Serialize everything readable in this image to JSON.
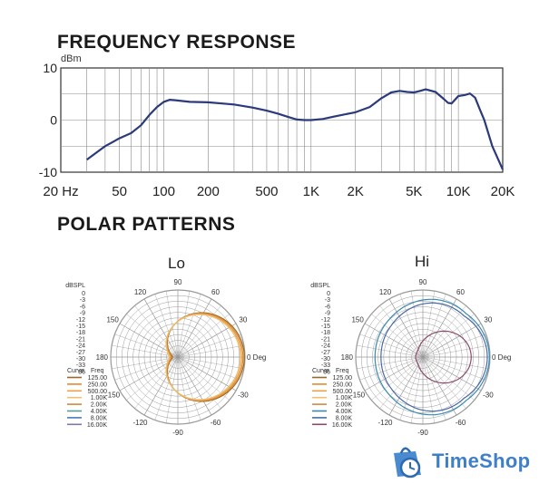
{
  "chart_data": [
    {
      "type": "line",
      "title": "FREQUENCY RESPONSE",
      "ylabel": "dBm",
      "xscale": "log",
      "xlim": [
        20,
        20000
      ],
      "ylim": [
        -10,
        10
      ],
      "grid": true,
      "x_ticks": [
        {
          "value": 20,
          "label": "20 Hz"
        },
        {
          "value": 50,
          "label": "50"
        },
        {
          "value": 100,
          "label": "100"
        },
        {
          "value": 200,
          "label": "200"
        },
        {
          "value": 500,
          "label": "500"
        },
        {
          "value": 1000,
          "label": "1K"
        },
        {
          "value": 2000,
          "label": "2K"
        },
        {
          "value": 5000,
          "label": "5K"
        },
        {
          "value": 10000,
          "label": "10K"
        },
        {
          "value": 20000,
          "label": "20K"
        }
      ],
      "y_ticks": [
        {
          "value": 10,
          "label": "10"
        },
        {
          "value": 0,
          "label": "0"
        },
        {
          "value": -10,
          "label": "-10"
        }
      ],
      "color": "#2b3a7a",
      "series": [
        {
          "x": [
            30,
            40,
            50,
            60,
            70,
            80,
            90,
            100,
            110,
            120,
            150,
            200,
            300,
            400,
            500,
            600,
            700,
            800,
            900,
            1000,
            1200,
            1500,
            2000,
            2500,
            3000,
            3500,
            4000,
            4500,
            5000,
            5500,
            6000,
            7000,
            8000,
            8500,
            9000,
            10000,
            11000,
            12000,
            13000,
            14000,
            15000,
            17000,
            20000
          ],
          "y": [
            -7.6,
            -5,
            -3.5,
            -2.5,
            -1,
            1,
            2.5,
            3.5,
            3.9,
            3.8,
            3.5,
            3.4,
            3.0,
            2.4,
            1.8,
            1.2,
            0.6,
            0.1,
            0,
            0,
            0.2,
            0.8,
            1.5,
            2.5,
            4.2,
            5.3,
            5.6,
            5.4,
            5.3,
            5.6,
            5.9,
            5.4,
            4.0,
            3.3,
            3.2,
            4.6,
            4.8,
            5.1,
            4.3,
            2.0,
            0,
            -5,
            -9.5
          ]
        }
      ]
    },
    {
      "type": "polar",
      "title": "Lo",
      "rlabel": "dBSPL",
      "r_ticks": [
        "0",
        "-3",
        "-6",
        "-9",
        "-12",
        "-15",
        "-18",
        "-21",
        "-24",
        "-27",
        "-30",
        "-33",
        "36"
      ],
      "angle_labels": [
        {
          "angle": 0,
          "label": "0 Deg"
        },
        {
          "angle": 30,
          "label": "30"
        },
        {
          "angle": 60,
          "label": "60"
        },
        {
          "angle": 90,
          "label": "90"
        },
        {
          "angle": 120,
          "label": "120"
        },
        {
          "angle": 150,
          "label": "150"
        },
        {
          "angle": 180,
          "label": "180"
        },
        {
          "angle": -150,
          "label": "-150"
        },
        {
          "angle": -120,
          "label": "-120"
        },
        {
          "angle": -90,
          "label": "-90"
        },
        {
          "angle": -60,
          "label": "-60"
        },
        {
          "angle": -30,
          "label": "-30"
        }
      ],
      "legend_header": {
        "curve": "Curve",
        "freq": "Freq"
      },
      "series": [
        {
          "name": "125.00",
          "color": "#9a6a2a",
          "pattern": "cardioid",
          "rmin": 0.08,
          "scale": 0.99
        },
        {
          "name": "250.00",
          "color": "#e08a2e",
          "pattern": "cardioid",
          "rmin": 0.1,
          "scale": 0.97
        },
        {
          "name": "500.00",
          "color": "#e9a24a",
          "pattern": "cardioid",
          "rmin": 0.12,
          "scale": 0.95
        },
        {
          "name": "1.00K",
          "color": "#f0c070",
          "pattern": "cardioid",
          "rmin": 0.14,
          "scale": 0.93
        },
        {
          "name": "2.00K",
          "color": "#cd8a3c",
          "pattern": "none"
        },
        {
          "name": "4.00K",
          "color": "#5a9a9a",
          "pattern": "none"
        },
        {
          "name": "8.00K",
          "color": "#4a7ab0",
          "pattern": "none"
        },
        {
          "name": "16.00K",
          "color": "#7a7aa8",
          "pattern": "none"
        }
      ]
    },
    {
      "type": "polar",
      "title": "Hi",
      "rlabel": "dBSPL",
      "r_ticks": [
        "0",
        "-3",
        "-6",
        "-9",
        "-12",
        "-15",
        "-18",
        "-21",
        "-24",
        "-27",
        "-30",
        "-33",
        "36"
      ],
      "angle_labels": [
        {
          "angle": 0,
          "label": "0 Deg"
        },
        {
          "angle": 30,
          "label": "30"
        },
        {
          "angle": 60,
          "label": "60"
        },
        {
          "angle": 90,
          "label": "90"
        },
        {
          "angle": 120,
          "label": "120"
        },
        {
          "angle": 150,
          "label": "150"
        },
        {
          "angle": 180,
          "label": "180"
        },
        {
          "angle": -150,
          "label": "-150"
        },
        {
          "angle": -120,
          "label": "-120"
        },
        {
          "angle": -90,
          "label": "-90"
        },
        {
          "angle": -60,
          "label": "-60"
        },
        {
          "angle": -30,
          "label": "-30"
        }
      ],
      "legend_header": {
        "curve": "Curve",
        "freq": "Freq"
      },
      "series": [
        {
          "name": "125.00",
          "color": "#9a6a2a",
          "pattern": "none"
        },
        {
          "name": "250.00",
          "color": "#e08a2e",
          "pattern": "none"
        },
        {
          "name": "500.00",
          "color": "#e9a24a",
          "pattern": "none"
        },
        {
          "name": "1.00K",
          "color": "#f0c070",
          "pattern": "none"
        },
        {
          "name": "2.00K",
          "color": "#cd8a3c",
          "pattern": "none"
        },
        {
          "name": "4.00K",
          "color": "#3a8ab0",
          "pattern": "wide",
          "rmin": 0.72,
          "scale": 0.99
        },
        {
          "name": "8.00K",
          "color": "#4a6aa8",
          "pattern": "wide",
          "rmin": 0.65,
          "scale": 0.96
        },
        {
          "name": "16.00K",
          "color": "#8a4a6a",
          "pattern": "narrow",
          "rmin": 0.15,
          "scale": 0.72
        }
      ]
    }
  ],
  "watermark": {
    "text": "TimeShop",
    "icon": "bag-clock-icon",
    "color": "#3f7fc8"
  }
}
